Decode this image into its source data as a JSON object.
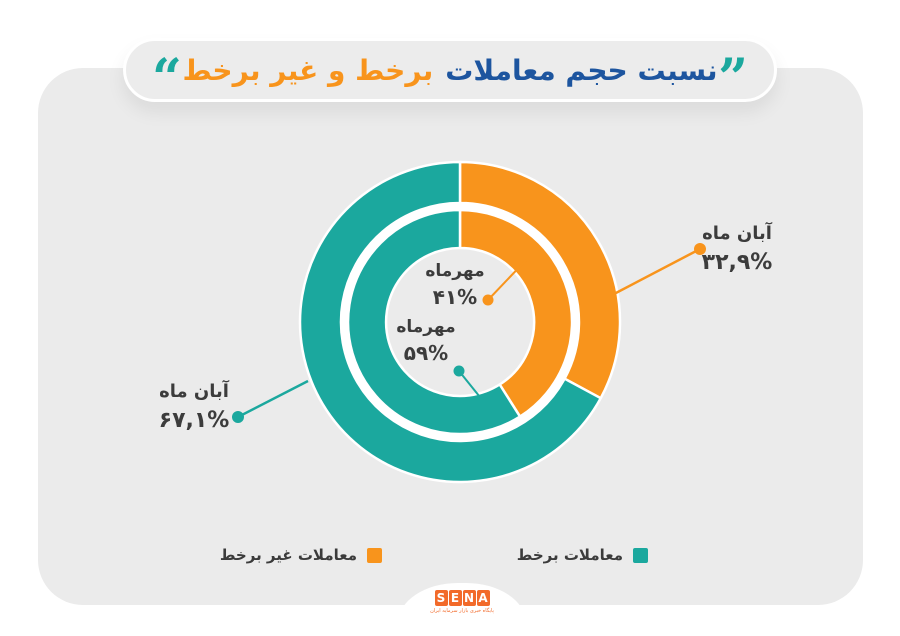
{
  "title": {
    "text_main": "نسبت حجم معاملات",
    "text_accent": "برخط و غیر برخط",
    "quote_right": "”",
    "quote_left": "“"
  },
  "chart_data": {
    "type": "pie",
    "subtype": "nested-donut",
    "title": "نسبت حجم معاملات برخط و غیر برخط",
    "legend_position": "bottom",
    "start_angle_deg": 0,
    "direction": "clockwise",
    "rings": [
      {
        "name": "outer",
        "period": "آبان ماه",
        "slices": [
          {
            "label": "معاملات غیر برخط",
            "value": 32.9,
            "display": "۳۲,۹%",
            "color_key": "orange"
          },
          {
            "label": "معاملات برخط",
            "value": 67.1,
            "display": "۶۷,۱%",
            "color_key": "teal"
          }
        ]
      },
      {
        "name": "inner",
        "period": "مهرماه",
        "slices": [
          {
            "label": "معاملات غیر برخط",
            "value": 41,
            "display": "۴۱%",
            "color_key": "orange"
          },
          {
            "label": "معاملات برخط",
            "value": 59,
            "display": "۵۹%",
            "color_key": "teal"
          }
        ]
      }
    ]
  },
  "callouts": {
    "outer_orange": {
      "month": "آبان ماه",
      "pct": "۳۲,۹%"
    },
    "outer_teal": {
      "month": "آبان ماه",
      "pct": "۶۷,۱%"
    },
    "inner_orange": {
      "month": "مهرماه",
      "pct": "۴۱%"
    },
    "inner_teal": {
      "month": "مهرماه",
      "pct": "۵۹%"
    }
  },
  "legend": {
    "online": "معاملات برخط",
    "offline": "معاملات غیر برخط"
  },
  "logo": {
    "letters": [
      "S",
      "E",
      "N",
      "A"
    ],
    "tagline": "پایگاه خبری بازار سرمایه ایران"
  },
  "colors": {
    "teal": "#1BA89E",
    "orange": "#F8941C",
    "blue": "#1D559F",
    "card": "#EBEBEB",
    "logo_orange": "#F26A2A",
    "text_dark": "#3C3C3C"
  }
}
